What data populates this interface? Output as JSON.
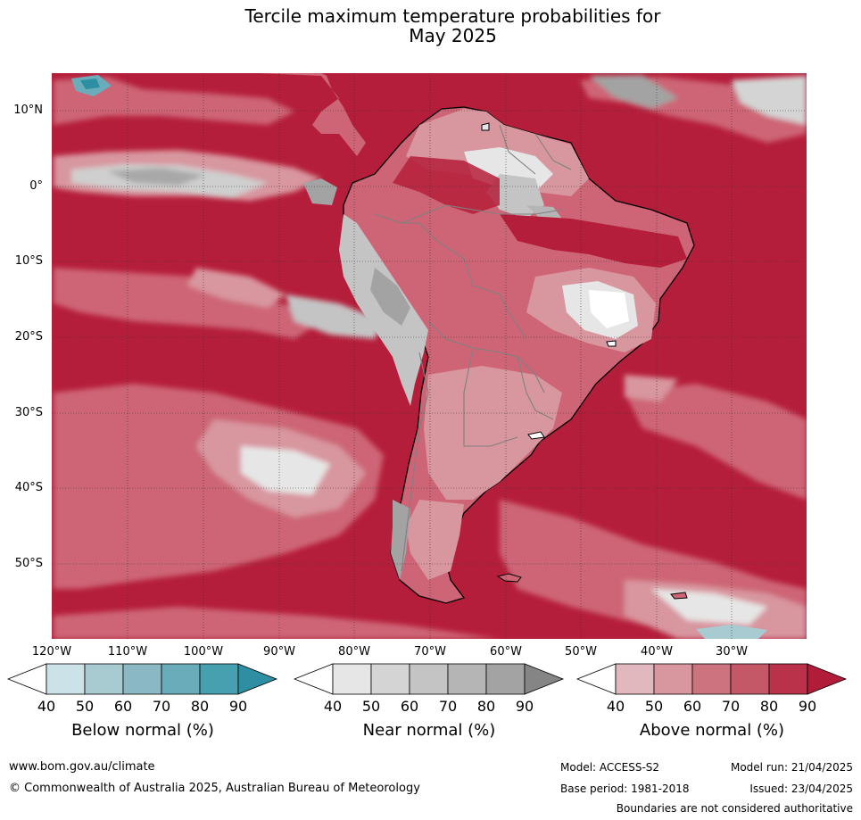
{
  "title": {
    "line1": "Tercile maximum temperature probabilities for",
    "line2": "May 2025"
  },
  "map": {
    "region": "South America",
    "lat_labels": [
      "10°N",
      "0°",
      "10°S",
      "20°S",
      "30°S",
      "40°S",
      "50°S"
    ],
    "lon_labels": [
      "120°W",
      "110°W",
      "100°W",
      "90°W",
      "80°W",
      "70°W",
      "60°W",
      "50°W",
      "40°W",
      "30°W"
    ],
    "dominant_category": "Above normal",
    "colors": {
      "ocean_dominant": "#b51e3a",
      "land_moderate": "#cd6576",
      "grey": "#a3a3a3",
      "teal": "#3394a8",
      "boundary": "#000000",
      "internal_border": "#808080"
    }
  },
  "colorbars": [
    {
      "title": "Below normal (%)",
      "ticks": [
        "40",
        "50",
        "60",
        "70",
        "80",
        "90"
      ],
      "colors": [
        "#ffffff",
        "#cbe2e8",
        "#a8cbd2",
        "#8ab9c4",
        "#6bacbb",
        "#47a0b0",
        "#2e8ea2"
      ]
    },
    {
      "title": "Near normal (%)",
      "ticks": [
        "40",
        "50",
        "60",
        "70",
        "80",
        "90"
      ],
      "colors": [
        "#ffffff",
        "#e6e6e6",
        "#d4d4d4",
        "#c4c4c4",
        "#b5b5b5",
        "#a3a3a3",
        "#858585"
      ]
    },
    {
      "title": "Above normal (%)",
      "ticks": [
        "40",
        "50",
        "60",
        "70",
        "80",
        "90"
      ],
      "colors": [
        "#ffffff",
        "#e2b8bf",
        "#d8969f",
        "#cd7380",
        "#c45867",
        "#b9324a",
        "#b11c38"
      ]
    }
  ],
  "footer": {
    "website": "www.bom.gov.au/climate",
    "copyright": "© Commonwealth of Australia 2025, Australian Bureau of Meteorology",
    "model": "Model: ACCESS-S2",
    "base_period": "Base period: 1981-2018",
    "model_run": "Model run: 21/04/2025",
    "issued": "Issued: 23/04/2025",
    "disclaimer": "Boundaries are not considered authoritative"
  }
}
